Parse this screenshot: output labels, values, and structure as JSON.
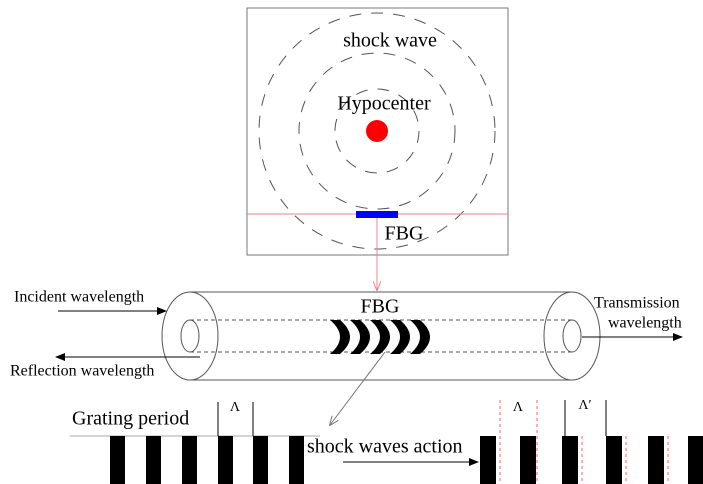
{
  "top_panel": {
    "shock_wave": "shock wave",
    "hypocenter": "Hypocenter",
    "fbg": "FBG"
  },
  "fiber": {
    "incident": "Incident wavelength",
    "fbg": "FBG",
    "transmission": [
      "Transmission",
      "wavelength"
    ],
    "reflection": "Reflection wavelength"
  },
  "grating": {
    "period_label": "Grating period",
    "period_symbol": "Λ",
    "action": "shock waves action",
    "after_period": "Λ",
    "after_period_changed": "Λ′"
  }
}
